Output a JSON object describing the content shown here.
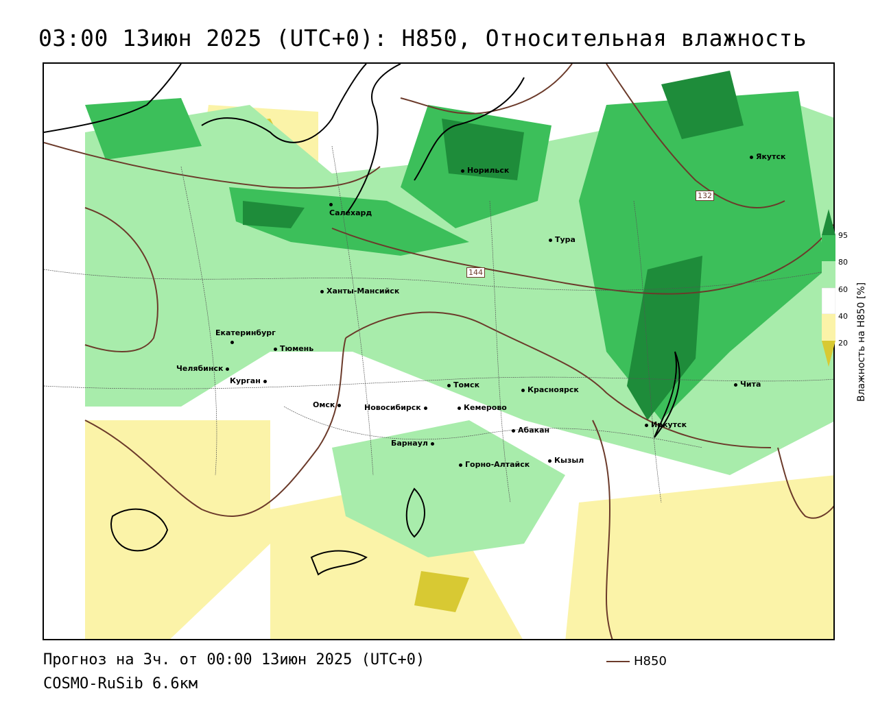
{
  "title": "03:00 13июн 2025 (UTC+0): H850, Относительная влажность",
  "footer": {
    "forecast": "Прогноз на 3ч. от 00:00 13июн 2025 (UTC+0)",
    "model": "COSMO-RuSib 6.6км",
    "contour_key_label": "H850"
  },
  "legend": {
    "title": "Влажность на H850 [%]",
    "ticks": [
      "95",
      "80",
      "60",
      "40",
      "20"
    ],
    "colors": {
      "very_high": "#1e8c3a",
      "high": "#3cbf5a",
      "mid": "#a8ecab",
      "low": "#ffffff",
      "dry": "#fbf3a8",
      "very_dry": "#d8c933"
    }
  },
  "contour_labels": [
    "132",
    "144"
  ],
  "cities": [
    {
      "name": "Якутск"
    },
    {
      "name": "Норильск"
    },
    {
      "name": "Салехард"
    },
    {
      "name": "Тура"
    },
    {
      "name": "Ханты-Мансийск"
    },
    {
      "name": "Екатеринбург"
    },
    {
      "name": "Тюмень"
    },
    {
      "name": "Челябинск"
    },
    {
      "name": "Курган"
    },
    {
      "name": "Томск"
    },
    {
      "name": "Красноярск"
    },
    {
      "name": "Чита"
    },
    {
      "name": "Омск"
    },
    {
      "name": "Новосибирск"
    },
    {
      "name": "Кемерово"
    },
    {
      "name": "Иркутск"
    },
    {
      "name": "Абакан"
    },
    {
      "name": "Барнаул"
    },
    {
      "name": "Горно-Алтайск"
    },
    {
      "name": "Кызыл"
    }
  ],
  "colors": {
    "contour": "#6b3a2a",
    "coast": "#000000",
    "border": "#555555"
  }
}
